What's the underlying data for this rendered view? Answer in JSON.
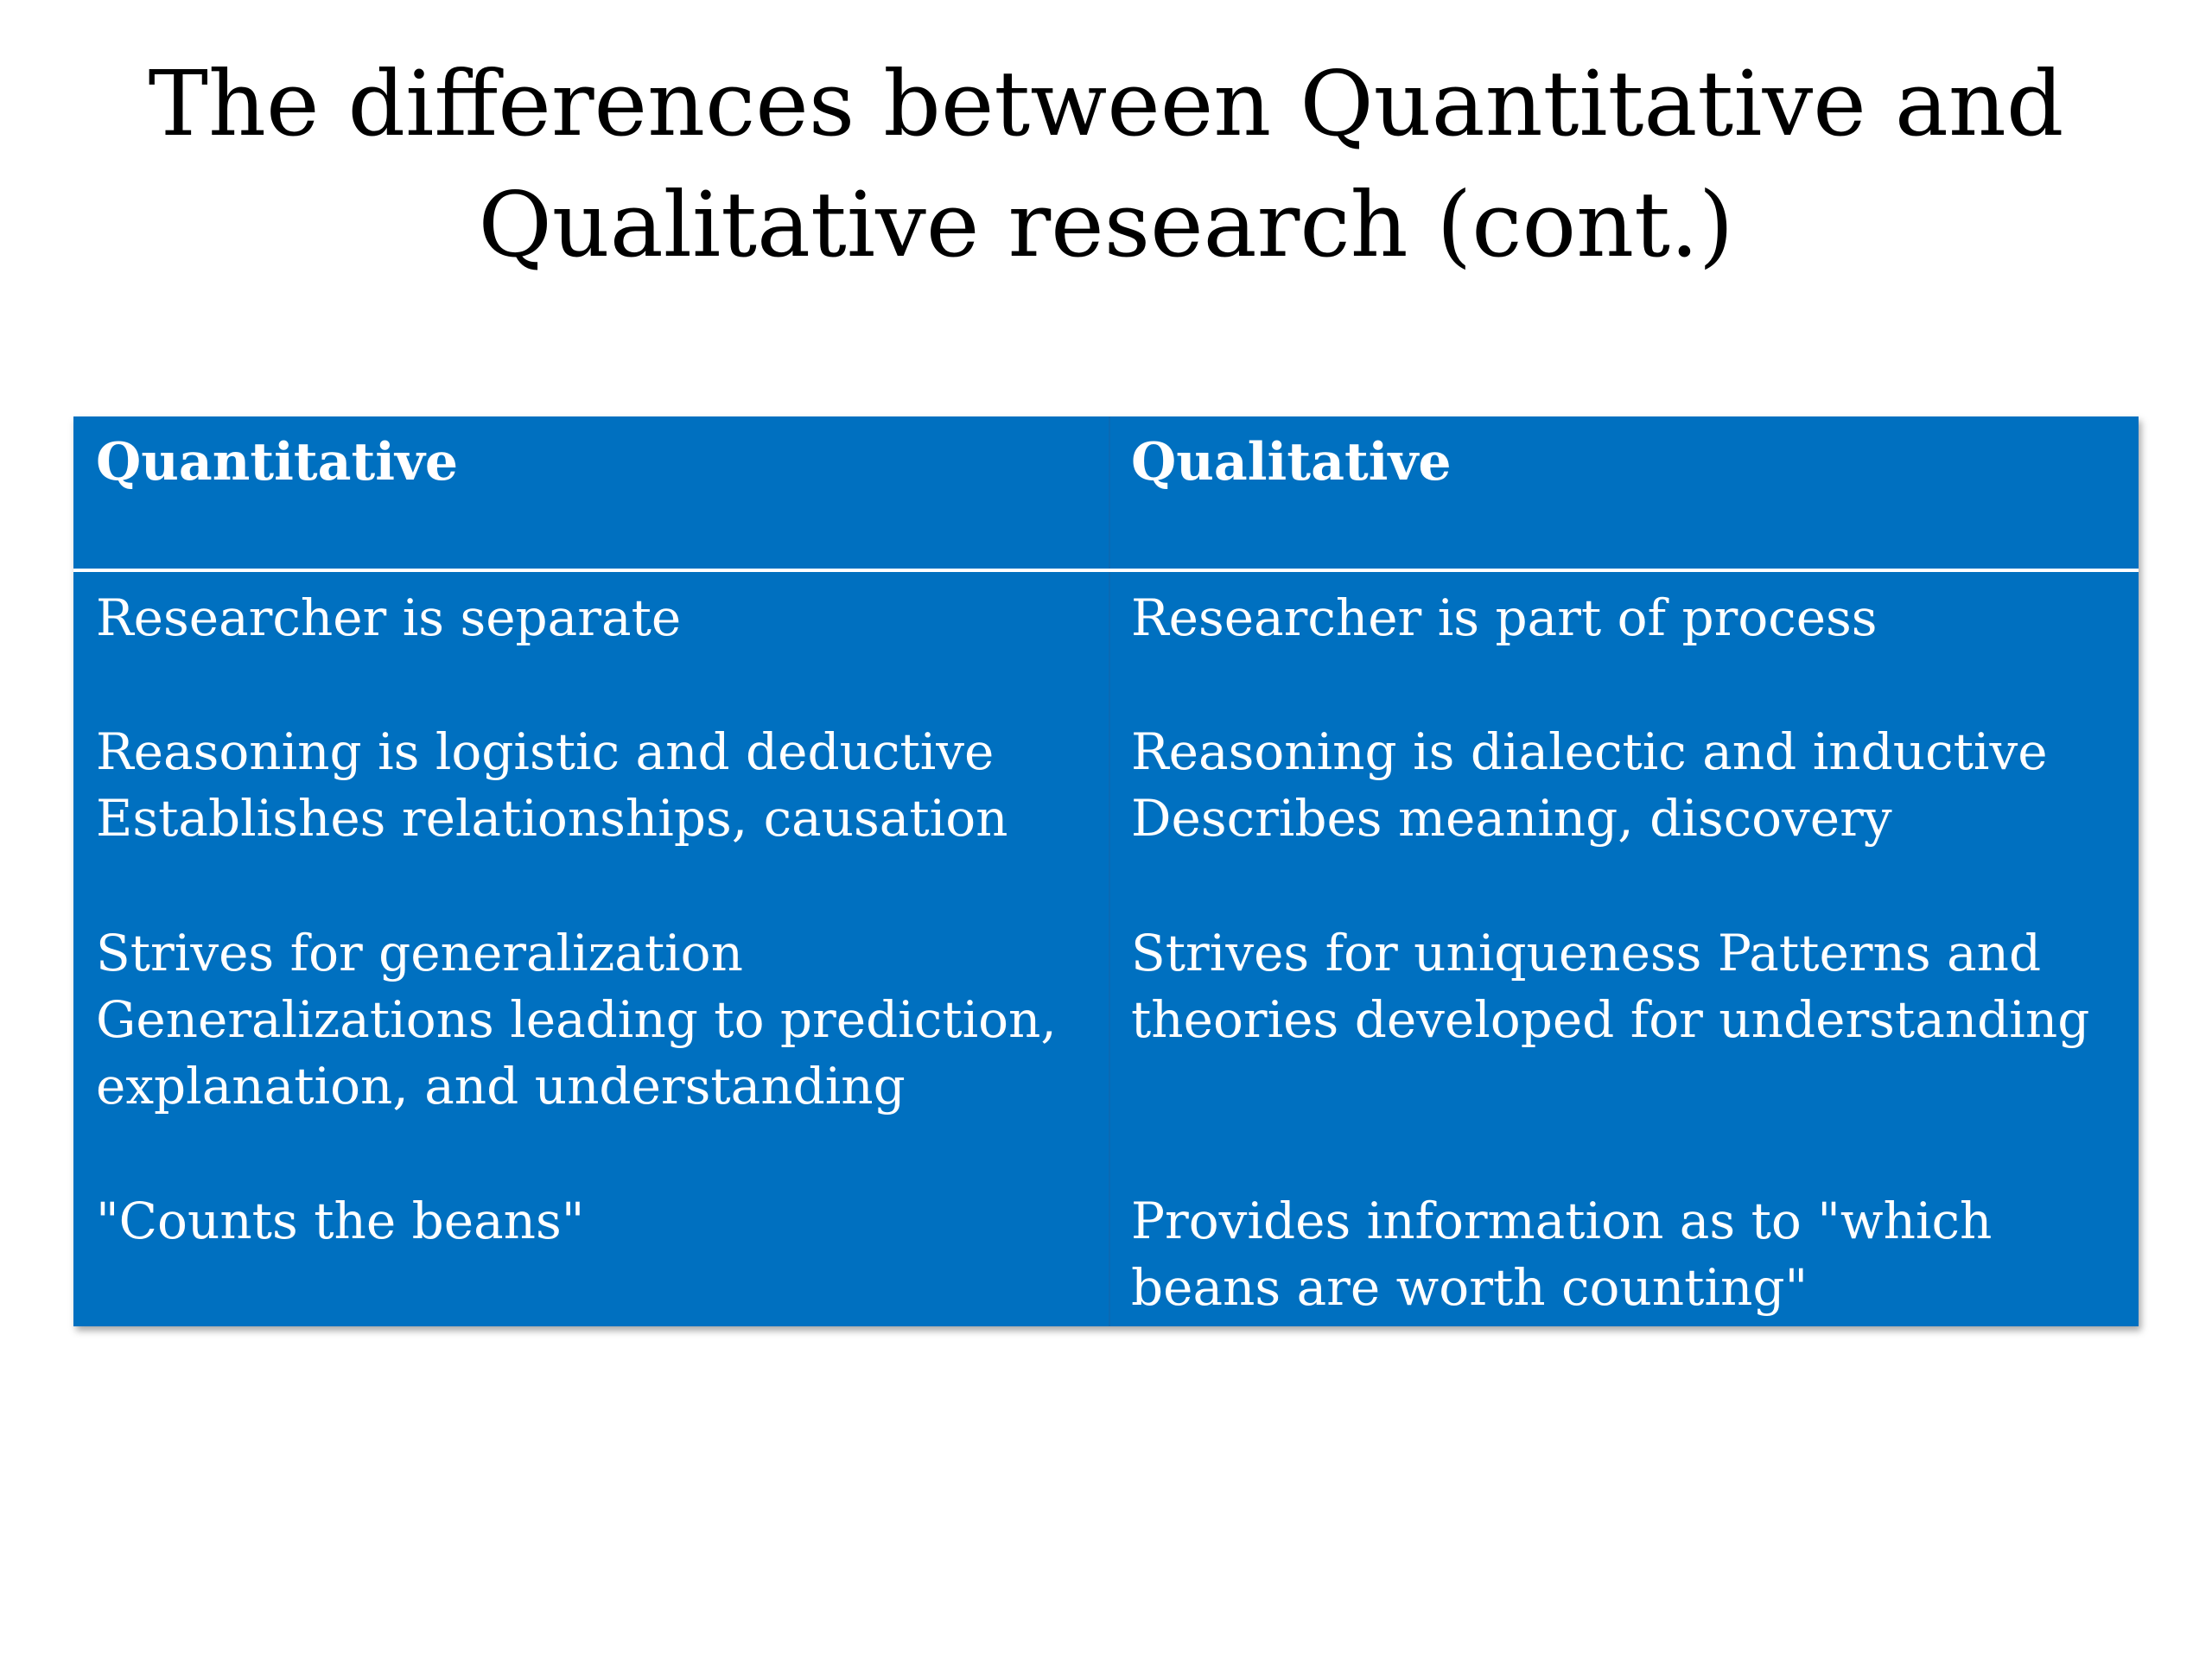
{
  "slide": {
    "title_lines": [
      "The differences between Quantitative and",
      "Qualitative research (cont.)"
    ]
  },
  "table": {
    "headers": [
      "Quantitative",
      "Qualitative"
    ],
    "rows": [
      {
        "quantitative": [
          "Researcher is separate"
        ],
        "qualitative": [
          "Researcher is part of process"
        ]
      },
      {
        "quantitative": [
          "Reasoning is logistic and deductive",
          "Establishes relationships, causation"
        ],
        "qualitative": [
          "Reasoning is dialectic and inductive",
          "Describes meaning, discovery"
        ]
      },
      {
        "quantitative": [
          "Strives for generalization",
          "Generalizations leading to prediction,",
          "explanation, and understanding"
        ],
        "qualitative": [
          "Strives for uniqueness Patterns and",
          "theories developed for understanding"
        ]
      },
      {
        "quantitative": [
          "\"Counts the beans\""
        ],
        "qualitative": [
          "Provides information as to \"which",
          "beans are worth counting\""
        ]
      }
    ]
  },
  "colors": {
    "table_background": "#0070c0",
    "text_on_table": "#ffffff",
    "title_text": "#000000"
  }
}
